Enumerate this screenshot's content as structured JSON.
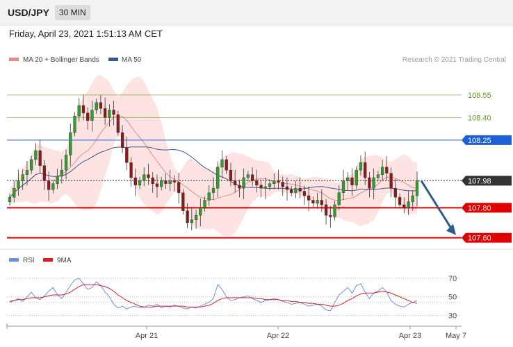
{
  "header": {
    "symbol": "USD/JPY",
    "timeframe": "30 MIN"
  },
  "timestamp": "Friday, April 23, 2021 1:51:13 AM CET",
  "legend": {
    "items": [
      {
        "label": "MA 20 + Bollinger Bands",
        "color": "#e88a8a"
      },
      {
        "label": "MA 50",
        "color": "#3a5a8c"
      }
    ],
    "copyright": "Research © 2021 Trading Central"
  },
  "chart_data": [
    {
      "type": "candlestick",
      "title": "",
      "ylim": [
        107.52,
        108.72
      ],
      "x_ticks": [
        "Apr 21",
        "Apr 22",
        "Apr 23",
        "May 7"
      ],
      "close_series": [
        107.87,
        107.93,
        107.98,
        108.02,
        108.05,
        108.12,
        108.18,
        108.08,
        107.98,
        107.92,
        107.96,
        108.01,
        108.05,
        108.15,
        108.3,
        108.41,
        108.48,
        108.43,
        108.38,
        108.45,
        108.5,
        108.46,
        108.4,
        108.45,
        108.42,
        108.3,
        108.2,
        108.1,
        108.0,
        107.95,
        107.98,
        108.02,
        108.0,
        107.96,
        107.94,
        107.98,
        107.96,
        107.98,
        107.97,
        107.9,
        107.78,
        107.7,
        107.72,
        107.75,
        107.8,
        107.85,
        107.9,
        107.93,
        108.07,
        108.12,
        108.05,
        107.98,
        107.95,
        107.93,
        108.0,
        108.02,
        107.98,
        107.95,
        107.93,
        107.94,
        107.96,
        107.98,
        107.97,
        107.94,
        107.92,
        107.9,
        107.93,
        107.91,
        107.88,
        107.85,
        107.83,
        107.85,
        107.82,
        107.75,
        107.74,
        107.82,
        107.9,
        107.98,
        108.0,
        107.95,
        108.05,
        108.1,
        108.0,
        107.93,
        108.0,
        108.02,
        108.07,
        108.03,
        107.93,
        107.87,
        107.82,
        107.8,
        107.84,
        107.88,
        107.98
      ],
      "horizontal_levels": [
        {
          "label": "108.55",
          "value": 108.55,
          "color": "#5a9a1a",
          "style": "thin"
        },
        {
          "label": "108.40",
          "value": 108.4,
          "color": "#5a9a1a",
          "style": "thin"
        },
        {
          "label": "108.25",
          "value": 108.25,
          "color": "#1c5fd8",
          "style": "line"
        },
        {
          "label": "107.98",
          "value": 107.98,
          "color": "#333333",
          "style": "dotted"
        },
        {
          "label": "107.80",
          "value": 107.8,
          "color": "#e00000",
          "style": "thick"
        },
        {
          "label": "107.60",
          "value": 107.6,
          "color": "#e00000",
          "style": "thick"
        }
      ]
    },
    {
      "type": "line",
      "title": "",
      "ylim": [
        20,
        78
      ],
      "y_ticks": [
        70,
        50,
        30
      ],
      "series": [
        {
          "name": "RSI",
          "color": "#6c8fe0",
          "values": [
            44,
            46,
            48,
            45,
            50,
            55,
            49,
            47,
            51,
            56,
            60,
            52,
            48,
            55,
            62,
            68,
            70,
            64,
            58,
            60,
            66,
            62,
            55,
            50,
            42,
            38,
            40,
            37,
            39,
            40,
            38,
            39,
            41,
            40,
            42,
            38,
            40,
            39,
            41,
            40,
            38,
            37,
            39,
            38,
            40,
            42,
            44,
            48,
            63,
            58,
            50,
            46,
            47,
            49,
            50,
            51,
            48,
            46,
            44,
            46,
            47,
            48,
            47,
            45,
            44,
            42,
            43,
            44,
            42,
            40,
            41,
            42,
            40,
            36,
            35,
            44,
            52,
            56,
            60,
            54,
            62,
            64,
            55,
            48,
            54,
            56,
            60,
            55,
            46,
            42,
            40,
            39,
            42,
            44,
            46
          ]
        },
        {
          "name": "9MA",
          "color": "#d81e1e",
          "values": [
            45,
            46,
            47,
            47,
            48,
            49,
            49,
            49,
            50,
            51,
            52,
            52,
            52,
            53,
            55,
            58,
            61,
            63,
            63,
            63,
            63,
            62,
            61,
            59,
            56,
            52,
            49,
            46,
            44,
            42,
            40,
            39,
            39,
            39,
            40,
            40,
            40,
            40,
            40,
            40,
            40,
            39,
            39,
            39,
            39,
            40,
            41,
            43,
            46,
            48,
            49,
            49,
            49,
            49,
            49,
            49,
            49,
            48,
            48,
            47,
            47,
            47,
            47,
            46,
            46,
            45,
            45,
            44,
            44,
            43,
            43,
            42,
            42,
            41,
            40,
            40,
            41,
            43,
            46,
            48,
            51,
            53,
            54,
            54,
            54,
            55,
            56,
            55,
            54,
            52,
            50,
            48,
            46,
            44,
            43
          ]
        }
      ]
    }
  ]
}
